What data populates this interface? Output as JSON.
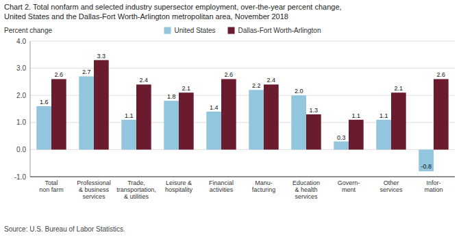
{
  "chart_data": {
    "type": "bar",
    "title": "Chart 2. Total nonfarm and selected industry supersector employment, over-the-year percent change,",
    "subtitle": "United States and the Dallas-Fort Worth-Arlington metropolitan area, November 2018",
    "ylabel": "Percent change",
    "annotations": [
      "Source: U.S. Bureau of Labor Statistics."
    ],
    "categories": [
      "Total\nnon farm",
      "Professional\n& business\nservices",
      "Trade,\ntransportation,\n& utilities",
      "Leisure &\nhospitality",
      "Financial\nactivities",
      "Manu-\nfacturing",
      "Education\n& health\nservices",
      "Govern-\nment",
      "Other\nservices",
      "Infor-\nmation"
    ],
    "series": [
      {
        "name": "United States",
        "color": "#92C5DE",
        "values": [
          1.6,
          2.7,
          1.1,
          1.8,
          1.4,
          2.2,
          2.0,
          0.3,
          1.1,
          -0.8
        ],
        "value_labels": [
          "1.6",
          "2.7",
          "1.1",
          "1.8",
          "1.4",
          "2.2",
          "2.0",
          "0.3",
          "1.1",
          "-0.8"
        ]
      },
      {
        "name": "Dallas-Fort Worth-Arlington",
        "color": "#6B1B2E",
        "values": [
          2.6,
          3.3,
          2.4,
          2.1,
          2.6,
          2.4,
          1.3,
          1.1,
          2.1,
          2.6
        ],
        "value_labels": [
          "2.6",
          "3.3",
          "2.4",
          "2.1",
          "2.6",
          "2.4",
          "1.3",
          "1.1",
          "2.1",
          "2.6"
        ]
      }
    ],
    "ylim": [
      -1.0,
      4.0
    ],
    "yticks": [
      {
        "value": -1.0,
        "label": "-1.0"
      },
      {
        "value": 0.0,
        "label": "0.0"
      },
      {
        "value": 1.0,
        "label": "1.0"
      },
      {
        "value": 2.0,
        "label": "2.0"
      },
      {
        "value": 3.0,
        "label": "3.0"
      },
      {
        "value": 4.0,
        "label": "4.0"
      }
    ],
    "grid": true,
    "legend": "top",
    "data_labels": true
  }
}
